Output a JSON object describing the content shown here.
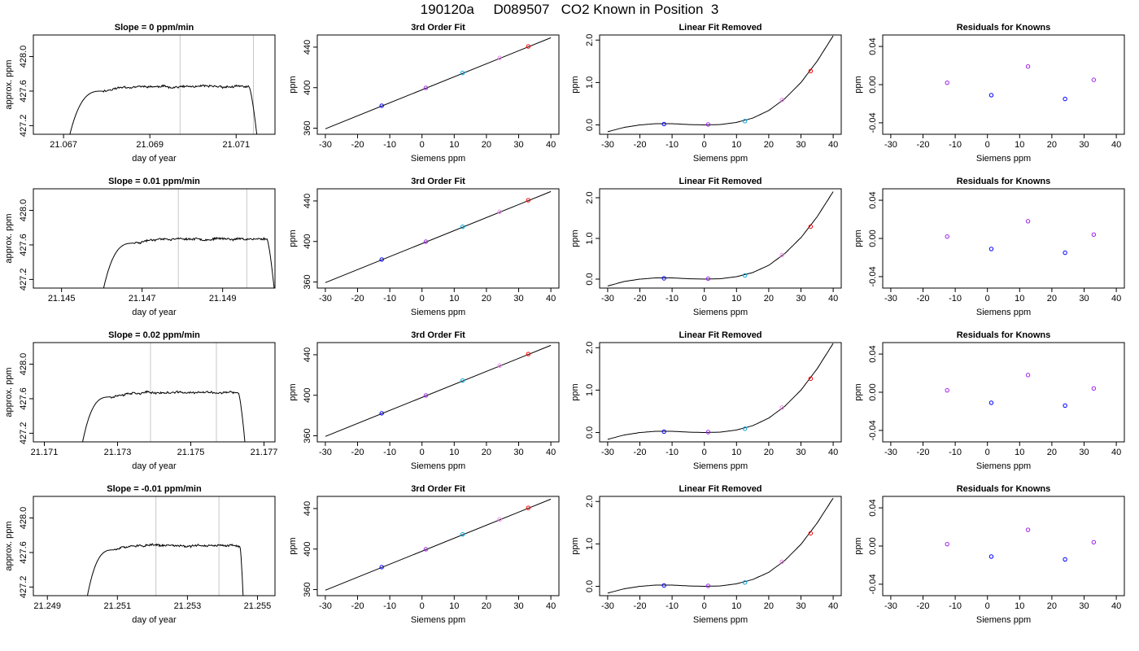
{
  "page": {
    "title": "190120a     D089507   CO2 Known in Position  3"
  },
  "colors": {
    "trace": "#000000",
    "marker_blue": "#0000ff",
    "marker_purple": "#a020f0",
    "marker_cyan": "#00a5e0",
    "marker_violet": "#ee82ee",
    "marker_red": "#ff0000",
    "window_line": "#c8c8c8"
  },
  "chart_data": [
    {
      "type": "line",
      "title": "Slope =  0  ppm/min",
      "xlabel": "day of year",
      "ylabel": "approx. ppm",
      "xlim": [
        21.0663,
        21.0719
      ],
      "ylim": [
        427.1,
        428.25
      ],
      "xticks": [
        "21.067",
        "21.069",
        "21.071"
      ],
      "yticks": [
        "427.2",
        "427.6",
        "428.0"
      ],
      "averaging_window": [
        21.0697,
        21.0714
      ],
      "trace": {
        "start": 21.0671,
        "end": 21.0715,
        "rise_end": 21.0679,
        "drop_start": 21.0713,
        "level": 427.65,
        "base": 427.0,
        "noise": 0.02,
        "seed": 11
      }
    },
    {
      "type": "line",
      "title": "3rd Order Fit",
      "xlabel": "Siemens ppm",
      "ylabel": "ppm",
      "xlim": [
        -32.5,
        42.5
      ],
      "ylim": [
        354,
        452
      ],
      "xticks": [
        "-30",
        "-20",
        "-10",
        "0",
        "10",
        "20",
        "30",
        "40"
      ],
      "yticks": [
        "360",
        "400",
        "440"
      ],
      "series": [
        {
          "x": [
            -30,
            40
          ],
          "y": [
            359.4,
            449.3
          ]
        },
        {
          "x": [
            -12.5,
            1.2,
            12.6,
            24.1,
            33.0
          ],
          "y": [
            382.2,
            399.8,
            414.5,
            429.3,
            440.7
          ]
        }
      ]
    },
    {
      "type": "line",
      "title": "Linear Fit Removed",
      "xlabel": "Siemens ppm",
      "ylabel": "ppm",
      "xlim": [
        -32.5,
        42.5
      ],
      "ylim": [
        -0.22,
        2.12
      ],
      "xticks": [
        "-30",
        "-20",
        "-10",
        "0",
        "10",
        "20",
        "30",
        "40"
      ],
      "yticks": [
        "0.0",
        "1.0",
        "2.0"
      ],
      "series": [
        {
          "x": [
            -30,
            -25,
            -20,
            -15,
            -10,
            -5,
            0,
            5,
            10,
            15,
            20,
            25,
            30,
            35,
            40
          ],
          "y": [
            -0.16,
            -0.06,
            0.0,
            0.03,
            0.03,
            0.01,
            0.0,
            0.01,
            0.06,
            0.16,
            0.34,
            0.62,
            1.0,
            1.5,
            2.1
          ]
        },
        {
          "x": [
            -12.5,
            1.2,
            12.6,
            24.1,
            33.0
          ],
          "y": [
            0.02,
            0.01,
            0.09,
            0.59,
            1.27
          ]
        }
      ]
    },
    {
      "type": "scatter",
      "title": "Residuals for Knowns",
      "xlabel": "Siemens ppm",
      "ylabel": "ppm",
      "xlim": [
        -32.5,
        42.5
      ],
      "ylim": [
        -0.052,
        0.052
      ],
      "xticks": [
        "-30",
        "-20",
        "-10",
        "0",
        "10",
        "20",
        "30",
        "40"
      ],
      "yticks": [
        "-0.04",
        "0.00",
        "0.04"
      ],
      "series": [
        {
          "x": [
            -12.5,
            1.2,
            12.6,
            24.1,
            33.0
          ],
          "y": [
            0.002,
            -0.011,
            0.019,
            -0.015,
            0.005
          ]
        }
      ]
    },
    {
      "type": "line",
      "title": "Slope =  0.01  ppm/min",
      "xlabel": "day of year",
      "ylabel": "approx. ppm",
      "xlim": [
        21.1443,
        21.1503
      ],
      "ylim": [
        427.1,
        428.25
      ],
      "xticks": [
        "21.145",
        "21.147",
        "21.149"
      ],
      "yticks": [
        "427.2",
        "427.6",
        "428.0"
      ],
      "averaging_window": [
        21.1479,
        21.1496
      ],
      "trace": {
        "start": 21.146,
        "end": 21.1503,
        "rise_end": 21.1468,
        "drop_start": 21.1501,
        "level": 427.67,
        "base": 427.0,
        "noise": 0.02,
        "seed": 23
      }
    },
    {
      "type": "line",
      "title": "3rd Order Fit",
      "xlabel": "Siemens ppm",
      "ylabel": "ppm",
      "xlim": [
        -32.5,
        42.5
      ],
      "ylim": [
        354,
        452
      ],
      "xticks": [
        "-30",
        "-20",
        "-10",
        "0",
        "10",
        "20",
        "30",
        "40"
      ],
      "yticks": [
        "360",
        "400",
        "440"
      ],
      "series": [
        {
          "x": [
            -30,
            40
          ],
          "y": [
            359.4,
            449.3
          ]
        },
        {
          "x": [
            -12.5,
            1.2,
            12.6,
            24.1,
            33.0
          ],
          "y": [
            382.2,
            399.8,
            414.5,
            429.3,
            440.7
          ]
        }
      ]
    },
    {
      "type": "line",
      "title": "Linear Fit Removed",
      "xlabel": "Siemens ppm",
      "ylabel": "ppm",
      "xlim": [
        -32.5,
        42.5
      ],
      "ylim": [
        -0.22,
        2.22
      ],
      "xticks": [
        "-30",
        "-20",
        "-10",
        "0",
        "10",
        "20",
        "30",
        "40"
      ],
      "yticks": [
        "0.0",
        "1.0",
        "2.0"
      ],
      "series": [
        {
          "x": [
            -30,
            -25,
            -20,
            -15,
            -10,
            -5,
            0,
            5,
            10,
            15,
            20,
            25,
            30,
            35,
            40
          ],
          "y": [
            -0.17,
            -0.06,
            0.0,
            0.03,
            0.03,
            0.01,
            0.0,
            0.01,
            0.06,
            0.16,
            0.34,
            0.63,
            1.02,
            1.53,
            2.15
          ]
        },
        {
          "x": [
            -12.5,
            1.2,
            12.6,
            24.1,
            33.0
          ],
          "y": [
            0.02,
            0.01,
            0.09,
            0.59,
            1.29
          ]
        }
      ]
    },
    {
      "type": "scatter",
      "title": "Residuals for Knowns",
      "xlabel": "Siemens ppm",
      "ylabel": "ppm",
      "xlim": [
        -32.5,
        42.5
      ],
      "ylim": [
        -0.052,
        0.052
      ],
      "xticks": [
        "-30",
        "-20",
        "-10",
        "0",
        "10",
        "20",
        "30",
        "40"
      ],
      "yticks": [
        "-0.04",
        "0.00",
        "0.04"
      ],
      "series": [
        {
          "x": [
            -12.5,
            1.2,
            12.6,
            24.1,
            33.0
          ],
          "y": [
            0.002,
            -0.011,
            0.018,
            -0.015,
            0.004
          ]
        }
      ]
    },
    {
      "type": "line",
      "title": "Slope =  0.02  ppm/min",
      "xlabel": "day of year",
      "ylabel": "approx. ppm",
      "xlim": [
        21.1707,
        21.1773
      ],
      "ylim": [
        427.1,
        428.25
      ],
      "xticks": [
        "21.171",
        "21.173",
        "21.175",
        "21.177"
      ],
      "yticks": [
        "427.2",
        "427.6",
        "428.0"
      ],
      "averaging_window": [
        21.1739,
        21.1757
      ],
      "trace": {
        "start": 21.172,
        "end": 21.1765,
        "rise_end": 21.1728,
        "drop_start": 21.1763,
        "level": 427.67,
        "base": 427.0,
        "noise": 0.02,
        "seed": 37
      }
    },
    {
      "type": "line",
      "title": "3rd Order Fit",
      "xlabel": "Siemens ppm",
      "ylabel": "ppm",
      "xlim": [
        -32.5,
        42.5
      ],
      "ylim": [
        354,
        452
      ],
      "xticks": [
        "-30",
        "-20",
        "-10",
        "0",
        "10",
        "20",
        "30",
        "40"
      ],
      "yticks": [
        "360",
        "400",
        "440"
      ],
      "series": [
        {
          "x": [
            -30,
            40
          ],
          "y": [
            359.4,
            449.3
          ]
        },
        {
          "x": [
            -12.5,
            1.2,
            12.6,
            24.1,
            33.0
          ],
          "y": [
            382.2,
            399.8,
            414.5,
            429.3,
            440.7
          ]
        }
      ]
    },
    {
      "type": "line",
      "title": "Linear Fit Removed",
      "xlabel": "Siemens ppm",
      "ylabel": "ppm",
      "xlim": [
        -32.5,
        42.5
      ],
      "ylim": [
        -0.22,
        2.12
      ],
      "xticks": [
        "-30",
        "-20",
        "-10",
        "0",
        "10",
        "20",
        "30",
        "40"
      ],
      "yticks": [
        "0.0",
        "1.0",
        "2.0"
      ],
      "series": [
        {
          "x": [
            -30,
            -25,
            -20,
            -15,
            -10,
            -5,
            0,
            5,
            10,
            15,
            20,
            25,
            30,
            35,
            40
          ],
          "y": [
            -0.16,
            -0.06,
            0.0,
            0.03,
            0.03,
            0.01,
            0.0,
            0.01,
            0.06,
            0.16,
            0.34,
            0.62,
            1.0,
            1.5,
            2.1
          ]
        },
        {
          "x": [
            -12.5,
            1.2,
            12.6,
            24.1,
            33.0
          ],
          "y": [
            0.02,
            0.01,
            0.09,
            0.59,
            1.27
          ]
        }
      ]
    },
    {
      "type": "scatter",
      "title": "Residuals for Knowns",
      "xlabel": "Siemens ppm",
      "ylabel": "ppm",
      "xlim": [
        -32.5,
        42.5
      ],
      "ylim": [
        -0.052,
        0.052
      ],
      "xticks": [
        "-30",
        "-20",
        "-10",
        "0",
        "10",
        "20",
        "30",
        "40"
      ],
      "yticks": [
        "-0.04",
        "0.00",
        "0.04"
      ],
      "series": [
        {
          "x": [
            -12.5,
            1.2,
            12.6,
            24.1,
            33.0
          ],
          "y": [
            0.002,
            -0.011,
            0.018,
            -0.014,
            0.004
          ]
        }
      ]
    },
    {
      "type": "line",
      "title": "Slope =  -0.01  ppm/min",
      "xlabel": "day of year",
      "ylabel": "approx. ppm",
      "xlim": [
        21.2486,
        21.2555
      ],
      "ylim": [
        427.1,
        428.25
      ],
      "xticks": [
        "21.249",
        "21.251",
        "21.253",
        "21.255"
      ],
      "yticks": [
        "427.2",
        "427.6",
        "428.0"
      ],
      "averaging_window": [
        21.2521,
        21.2539
      ],
      "trace": {
        "start": 21.2501,
        "end": 21.2546,
        "rise_end": 21.2509,
        "drop_start": 21.2545,
        "level": 427.68,
        "base": 427.0,
        "noise": 0.02,
        "seed": 51
      }
    },
    {
      "type": "line",
      "title": "3rd Order Fit",
      "xlabel": "Siemens ppm",
      "ylabel": "ppm",
      "xlim": [
        -32.5,
        42.5
      ],
      "ylim": [
        354,
        452
      ],
      "xticks": [
        "-30",
        "-20",
        "-10",
        "0",
        "10",
        "20",
        "30",
        "40"
      ],
      "yticks": [
        "360",
        "400",
        "440"
      ],
      "series": [
        {
          "x": [
            -30,
            40
          ],
          "y": [
            359.4,
            449.3
          ]
        },
        {
          "x": [
            -12.5,
            1.2,
            12.6,
            24.1,
            33.0
          ],
          "y": [
            382.2,
            399.8,
            414.5,
            429.3,
            440.7
          ]
        }
      ]
    },
    {
      "type": "line",
      "title": "Linear Fit Removed",
      "xlabel": "Siemens ppm",
      "ylabel": "ppm",
      "xlim": [
        -32.5,
        42.5
      ],
      "ylim": [
        -0.22,
        2.12
      ],
      "xticks": [
        "-30",
        "-20",
        "-10",
        "0",
        "10",
        "20",
        "30",
        "40"
      ],
      "yticks": [
        "0.0",
        "1.0",
        "2.0"
      ],
      "series": [
        {
          "x": [
            -30,
            -25,
            -20,
            -15,
            -10,
            -5,
            0,
            5,
            10,
            15,
            20,
            25,
            30,
            35,
            40
          ],
          "y": [
            -0.16,
            -0.06,
            0.0,
            0.03,
            0.03,
            0.01,
            0.0,
            0.01,
            0.06,
            0.16,
            0.33,
            0.61,
            0.99,
            1.49,
            2.08
          ]
        },
        {
          "x": [
            -12.5,
            1.2,
            12.6,
            24.1,
            33.0
          ],
          "y": [
            0.02,
            0.01,
            0.09,
            0.58,
            1.25
          ]
        }
      ]
    },
    {
      "type": "scatter",
      "title": "Residuals for Knowns",
      "xlabel": "Siemens ppm",
      "ylabel": "ppm",
      "xlim": [
        -32.5,
        42.5
      ],
      "ylim": [
        -0.052,
        0.052
      ],
      "xticks": [
        "-30",
        "-20",
        "-10",
        "0",
        "10",
        "20",
        "30",
        "40"
      ],
      "yticks": [
        "-0.04",
        "0.00",
        "0.04"
      ],
      "series": [
        {
          "x": [
            -12.5,
            1.2,
            12.6,
            24.1,
            33.0
          ],
          "y": [
            0.002,
            -0.011,
            0.017,
            -0.014,
            0.004
          ]
        }
      ]
    }
  ]
}
